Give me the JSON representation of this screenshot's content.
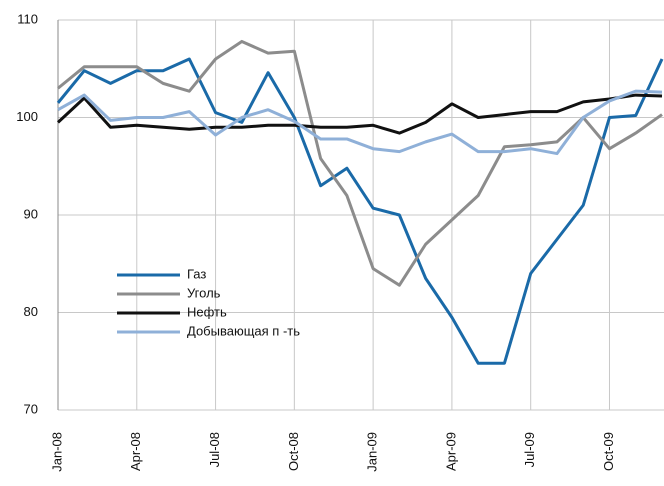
{
  "chart_data": {
    "type": "line",
    "categories": [
      "Jan-08",
      null,
      null,
      "Apr-08",
      null,
      null,
      "Jul-08",
      null,
      null,
      "Oct-08",
      null,
      null,
      "Jan-09",
      null,
      null,
      "Apr-09",
      null,
      null,
      "Jul-09",
      null,
      null,
      "Oct-09",
      null,
      null
    ],
    "series": [
      {
        "name": "Газ",
        "color": "#1a6aa8",
        "values": [
          101.5,
          104.8,
          103.5,
          104.8,
          104.8,
          106,
          100.5,
          99.5,
          104.6,
          100,
          93,
          94.8,
          90.7,
          90,
          83.5,
          79.5,
          74.8,
          74.8,
          84,
          87.5,
          91,
          100,
          100.2,
          106
        ]
      },
      {
        "name": "Уголь",
        "color": "#8c8c8c",
        "values": [
          103,
          105.2,
          105.2,
          105.2,
          103.5,
          102.7,
          106,
          107.8,
          106.6,
          106.8,
          95.8,
          92,
          84.5,
          82.8,
          87,
          89.5,
          92,
          97,
          97.2,
          97.5,
          100,
          96.8,
          98.4,
          100.3
        ]
      },
      {
        "name": "Нефть",
        "color": "#111111",
        "values": [
          99.5,
          102,
          99,
          99.2,
          99,
          98.8,
          99,
          99,
          99.2,
          99.2,
          99,
          99,
          99.2,
          98.4,
          99.5,
          101.4,
          100,
          100.3,
          100.6,
          100.6,
          101.6,
          101.9,
          102.3,
          102.2
        ]
      },
      {
        "name": "Добывающая п -ть",
        "color": "#8fb0d8",
        "values": [
          100.8,
          102.3,
          99.7,
          100,
          100,
          100.6,
          98.2,
          100,
          100.8,
          99.6,
          97.8,
          97.8,
          96.8,
          96.5,
          97.5,
          98.3,
          96.5,
          96.5,
          96.8,
          96.3,
          100,
          101.7,
          102.7,
          102.6
        ]
      }
    ],
    "ylim": [
      70,
      110
    ],
    "yticks": [
      70,
      80,
      90,
      100,
      110
    ],
    "grid": true,
    "legend": "left"
  }
}
